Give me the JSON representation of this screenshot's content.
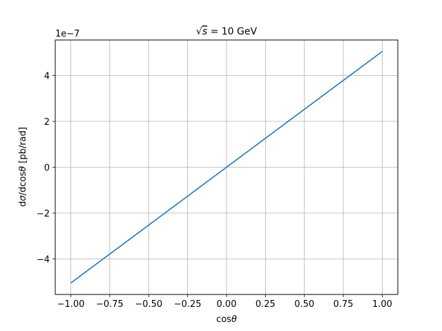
{
  "chart_data": {
    "type": "line",
    "title": {
      "radicand": "s",
      "rest": " = 10 GeV"
    },
    "xlabel": {
      "prefix": "cos",
      "symbol": "θ"
    },
    "ylabel": {
      "d1": "d",
      "sigma": "σ",
      "middle": "/dcos",
      "theta": "θ",
      "suffix": " [pb/rad]"
    },
    "y_scale_label": "1e−7",
    "y_scale": 1e-07,
    "xlim": [
      -1.1,
      1.1
    ],
    "ylim": [
      -5.55,
      5.55
    ],
    "x_ticks": [
      -1.0,
      -0.75,
      -0.5,
      -0.25,
      0.0,
      0.25,
      0.5,
      0.75,
      1.0
    ],
    "x_tick_labels": [
      "−1.00",
      "−0.75",
      "−0.50",
      "−0.25",
      "0.00",
      "0.25",
      "0.50",
      "0.75",
      "1.00"
    ],
    "y_ticks": [
      -4,
      -2,
      0,
      2,
      4
    ],
    "y_tick_labels": [
      "−4",
      "−2",
      "0",
      "2",
      "4"
    ],
    "grid": true,
    "series": [
      {
        "color": "#1f77b4",
        "x": [
          -1.0,
          1.0
        ],
        "y": [
          -5.05,
          5.05
        ]
      }
    ]
  }
}
